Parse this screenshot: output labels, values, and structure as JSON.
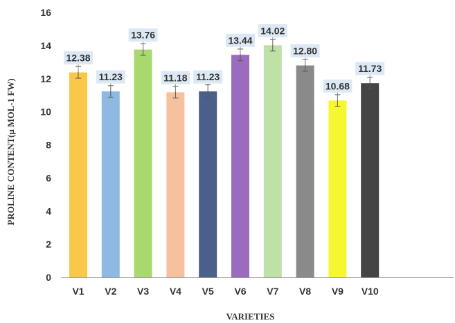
{
  "chart_data": {
    "type": "bar",
    "title": "",
    "xlabel": "VARIETIES",
    "ylabel": "PROLINE CONTENT(µ MOL-1 FW)",
    "ylim": [
      0,
      16
    ],
    "yticks": [
      0,
      2,
      4,
      6,
      8,
      10,
      12,
      14,
      16
    ],
    "grid": false,
    "categories": [
      "V1",
      "V2",
      "V3",
      "V4",
      "V5",
      "V6",
      "V7",
      "V8",
      "V9",
      "V10"
    ],
    "values": [
      12.38,
      11.23,
      13.76,
      11.18,
      11.23,
      13.44,
      14.02,
      12.8,
      10.68,
      11.73
    ],
    "value_labels": [
      "12.38",
      "11.23",
      "13.76",
      "11.18",
      "11.23",
      "13.44",
      "14.02",
      "12.80",
      "10.68",
      "11.73"
    ],
    "error": [
      0.35,
      0.35,
      0.35,
      0.35,
      0.4,
      0.35,
      0.35,
      0.35,
      0.35,
      0.35
    ],
    "colors": [
      "#F9C846",
      "#8DB9E3",
      "#A9D86E",
      "#F5C19E",
      "#4A5F8A",
      "#9B6BBF",
      "#BFE0A6",
      "#8A8A8A",
      "#F7F731",
      "#444444"
    ],
    "label_box_color": "#DCE9F5",
    "axis_color": "#9a9a9a"
  }
}
